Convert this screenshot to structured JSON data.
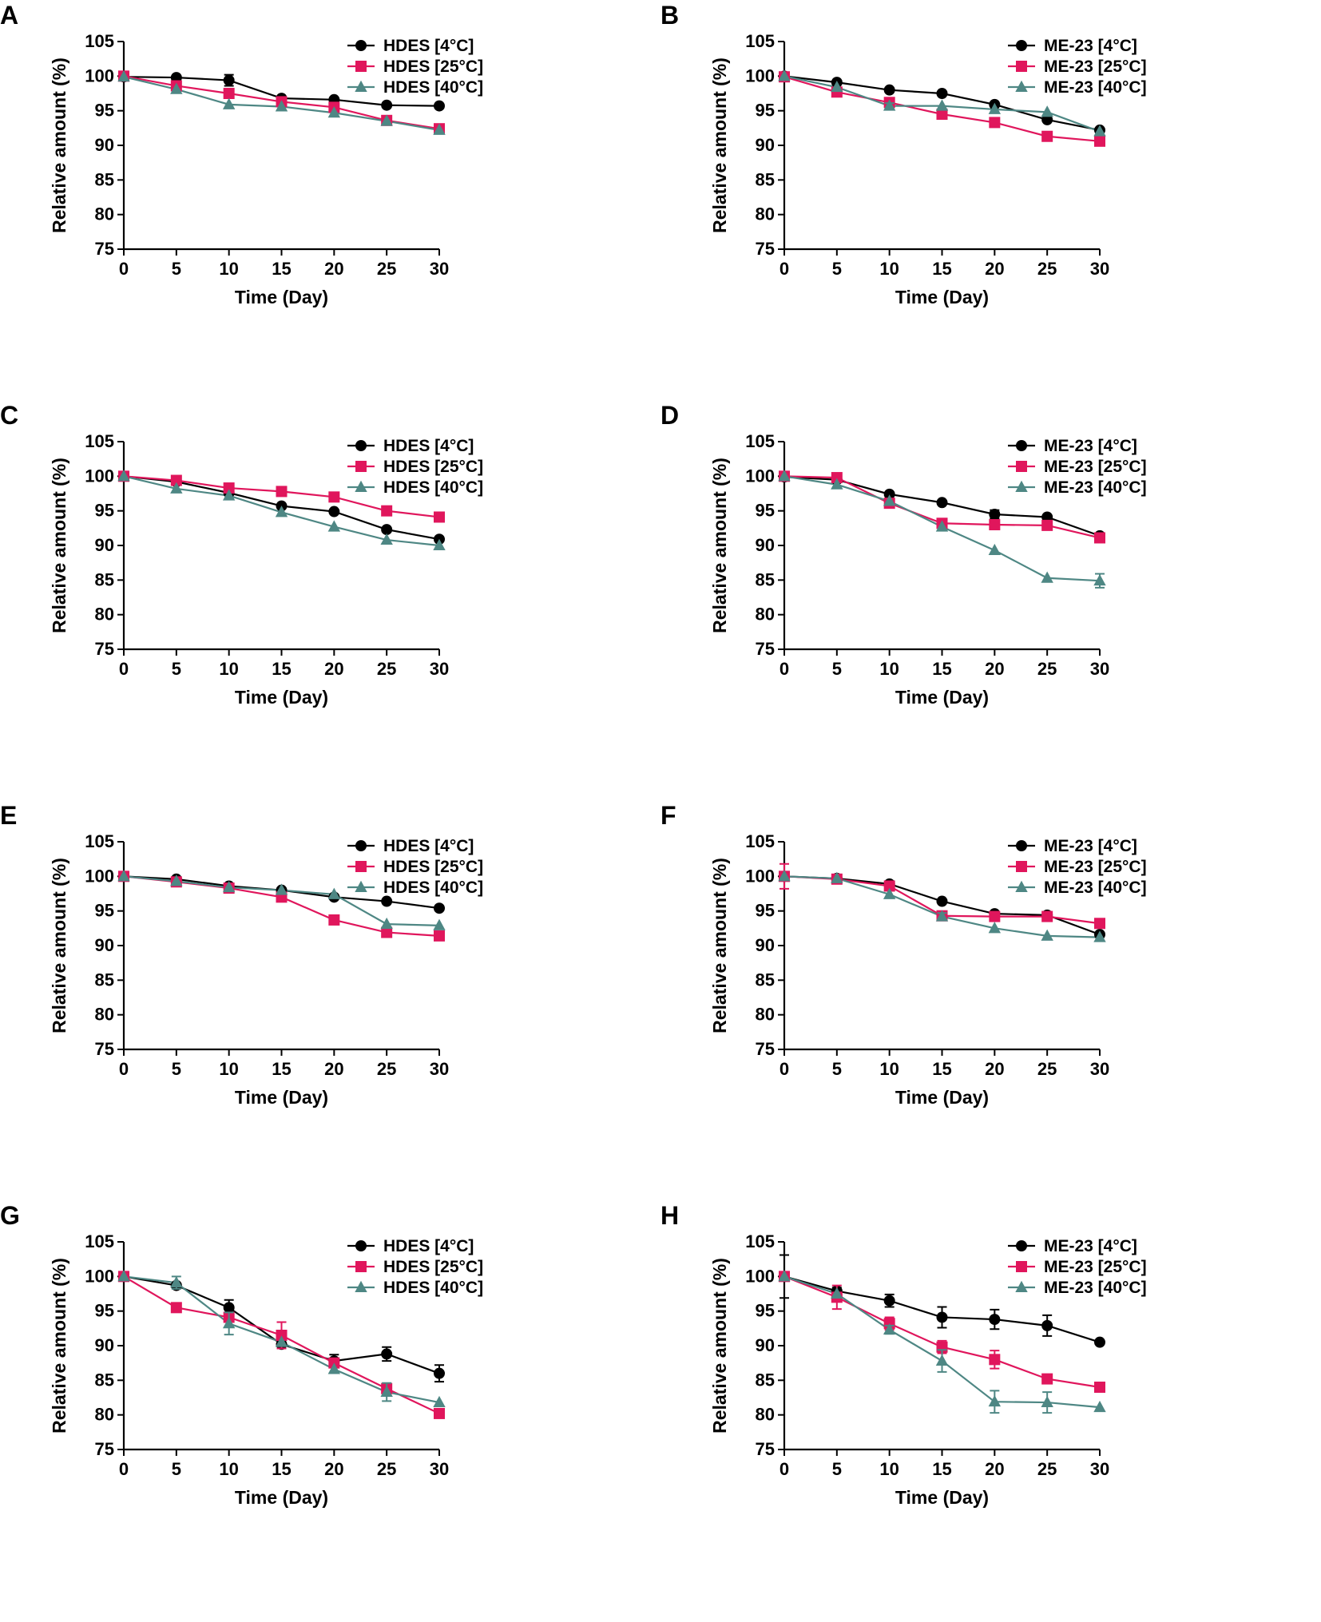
{
  "colors": {
    "s4": "#000000",
    "s25": "#E0165C",
    "s40": "#4E8784"
  },
  "chart_data": [
    {
      "panel": "A",
      "type": "line",
      "xlabel": "Time (Day)",
      "ylabel": "Relative amount (%)",
      "xlim": [
        0,
        30
      ],
      "ylim": [
        75,
        105
      ],
      "xticks": [
        "0",
        "5",
        "10",
        "15",
        "20",
        "25",
        "30"
      ],
      "yticks": [
        "75",
        "80",
        "85",
        "90",
        "95",
        "100",
        "105"
      ],
      "x": [
        0,
        5,
        10,
        15,
        20,
        25,
        30
      ],
      "series": [
        {
          "name": "HDES [4°C]",
          "marker": "circle",
          "color_key": "s4",
          "values": [
            99.9,
            99.8,
            99.4,
            96.8,
            96.6,
            95.8,
            95.7
          ],
          "errors": [
            0.3,
            0.2,
            0.8,
            0.2,
            0.2,
            0.2,
            0.2
          ]
        },
        {
          "name": "HDES [25°C]",
          "marker": "square",
          "color_key": "s25",
          "values": [
            100.0,
            98.6,
            97.5,
            96.3,
            95.5,
            93.6,
            92.4
          ],
          "errors": [
            0,
            0,
            0,
            0,
            0,
            0,
            0
          ]
        },
        {
          "name": "HDES [40°C]",
          "marker": "triangle",
          "color_key": "s40",
          "values": [
            99.9,
            98.1,
            95.9,
            95.6,
            94.7,
            93.5,
            92.2
          ],
          "errors": [
            0,
            0,
            0,
            0,
            0,
            0,
            0
          ]
        }
      ]
    },
    {
      "panel": "B",
      "type": "line",
      "xlabel": "Time (Day)",
      "ylabel": "Relative amount (%)",
      "xlim": [
        0,
        30
      ],
      "ylim": [
        75,
        105
      ],
      "xticks": [
        "0",
        "5",
        "10",
        "15",
        "20",
        "25",
        "30"
      ],
      "yticks": [
        "75",
        "80",
        "85",
        "90",
        "95",
        "100",
        "105"
      ],
      "x": [
        0,
        5,
        10,
        15,
        20,
        25,
        30
      ],
      "series": [
        {
          "name": "ME-23 [4°C]",
          "marker": "circle",
          "color_key": "s4",
          "values": [
            100.0,
            99.1,
            98.0,
            97.5,
            95.9,
            93.7,
            92.2
          ],
          "errors": [
            0,
            0,
            0,
            0,
            0,
            0,
            0
          ]
        },
        {
          "name": "ME-23 [25°C]",
          "marker": "square",
          "color_key": "s25",
          "values": [
            99.9,
            97.7,
            96.2,
            94.5,
            93.3,
            91.3,
            90.6
          ],
          "errors": [
            0,
            0,
            0,
            0,
            0,
            0,
            0
          ]
        },
        {
          "name": "ME-23 [40°C]",
          "marker": "triangle",
          "color_key": "s40",
          "values": [
            100.0,
            98.4,
            95.7,
            95.7,
            95.2,
            94.8,
            92.0
          ],
          "errors": [
            0,
            0,
            0.4,
            0,
            0,
            0,
            0
          ]
        }
      ]
    },
    {
      "panel": "C",
      "type": "line",
      "xlabel": "Time (Day)",
      "ylabel": "Relative amount (%)",
      "xlim": [
        0,
        30
      ],
      "ylim": [
        75,
        105
      ],
      "xticks": [
        "0",
        "5",
        "10",
        "15",
        "20",
        "25",
        "30"
      ],
      "yticks": [
        "75",
        "80",
        "85",
        "90",
        "95",
        "100",
        "105"
      ],
      "x": [
        0,
        5,
        10,
        15,
        20,
        25,
        30
      ],
      "series": [
        {
          "name": "HDES [4°C]",
          "marker": "circle",
          "color_key": "s4",
          "values": [
            100.0,
            99.2,
            97.6,
            95.7,
            94.9,
            92.3,
            90.9
          ],
          "errors": [
            0,
            0,
            0,
            0,
            0,
            0,
            0
          ]
        },
        {
          "name": "HDES [25°C]",
          "marker": "square",
          "color_key": "s25",
          "values": [
            100.0,
            99.4,
            98.3,
            97.8,
            97.0,
            95.0,
            94.1
          ],
          "errors": [
            0,
            0,
            0,
            0,
            0,
            0,
            0
          ]
        },
        {
          "name": "HDES [40°C]",
          "marker": "triangle",
          "color_key": "s40",
          "values": [
            100.0,
            98.2,
            97.2,
            94.8,
            92.7,
            90.8,
            90.0
          ],
          "errors": [
            0,
            0,
            0,
            0,
            0,
            0,
            0
          ]
        }
      ]
    },
    {
      "panel": "D",
      "type": "line",
      "xlabel": "Time (Day)",
      "ylabel": "Relative amount (%)",
      "xlim": [
        0,
        30
      ],
      "ylim": [
        75,
        105
      ],
      "xticks": [
        "0",
        "5",
        "10",
        "15",
        "20",
        "25",
        "30"
      ],
      "yticks": [
        "75",
        "80",
        "85",
        "90",
        "95",
        "100",
        "105"
      ],
      "x": [
        0,
        5,
        10,
        15,
        20,
        25,
        30
      ],
      "series": [
        {
          "name": "ME-23 [4°C]",
          "marker": "circle",
          "color_key": "s4",
          "values": [
            99.9,
            99.5,
            97.4,
            96.2,
            94.5,
            94.1,
            91.4
          ],
          "errors": [
            0.4,
            0,
            0,
            0,
            0.6,
            0,
            0.3
          ]
        },
        {
          "name": "ME-23 [25°C]",
          "marker": "square",
          "color_key": "s25",
          "values": [
            100.0,
            99.8,
            96.1,
            93.2,
            93.0,
            92.9,
            91.1
          ],
          "errors": [
            0,
            0,
            0,
            0,
            0,
            0,
            0
          ]
        },
        {
          "name": "ME-23 [40°C]",
          "marker": "triangle",
          "color_key": "s40",
          "values": [
            100.0,
            98.8,
            96.4,
            92.7,
            89.3,
            85.3,
            84.9
          ],
          "errors": [
            0,
            0,
            0,
            0,
            0,
            0,
            1.0
          ]
        }
      ]
    },
    {
      "panel": "E",
      "type": "line",
      "xlabel": "Time (Day)",
      "ylabel": "Relative amount (%)",
      "xlim": [
        0,
        30
      ],
      "ylim": [
        75,
        105
      ],
      "xticks": [
        "0",
        "5",
        "10",
        "15",
        "20",
        "25",
        "30"
      ],
      "yticks": [
        "75",
        "80",
        "85",
        "90",
        "95",
        "100",
        "105"
      ],
      "x": [
        0,
        5,
        10,
        15,
        20,
        25,
        30
      ],
      "series": [
        {
          "name": "HDES [4°C]",
          "marker": "circle",
          "color_key": "s4",
          "values": [
            100.0,
            99.6,
            98.6,
            98.0,
            97.0,
            96.4,
            95.4
          ],
          "errors": [
            0,
            0,
            0,
            0,
            0,
            0,
            0
          ]
        },
        {
          "name": "HDES [25°C]",
          "marker": "square",
          "color_key": "s25",
          "values": [
            100.0,
            99.2,
            98.3,
            97.0,
            93.7,
            91.9,
            91.4
          ],
          "errors": [
            0,
            0,
            0,
            0,
            0,
            0,
            0
          ]
        },
        {
          "name": "HDES [40°C]",
          "marker": "triangle",
          "color_key": "s40",
          "values": [
            100.0,
            99.3,
            98.4,
            98.0,
            97.4,
            93.1,
            92.9
          ],
          "errors": [
            0,
            0,
            0,
            0,
            0,
            0,
            0
          ]
        }
      ]
    },
    {
      "panel": "F",
      "type": "line",
      "xlabel": "Time (Day)",
      "ylabel": "Relative amount (%)",
      "xlim": [
        0,
        30
      ],
      "ylim": [
        75,
        105
      ],
      "xticks": [
        "0",
        "5",
        "10",
        "15",
        "20",
        "25",
        "30"
      ],
      "yticks": [
        "75",
        "80",
        "85",
        "90",
        "95",
        "100",
        "105"
      ],
      "x": [
        0,
        5,
        10,
        15,
        20,
        25,
        30
      ],
      "series": [
        {
          "name": "ME-23 [4°C]",
          "marker": "circle",
          "color_key": "s4",
          "values": [
            100.0,
            99.7,
            98.9,
            96.4,
            94.6,
            94.4,
            91.6
          ],
          "errors": [
            0,
            0,
            0.4,
            0,
            0,
            0,
            0
          ]
        },
        {
          "name": "ME-23 [25°C]",
          "marker": "square",
          "color_key": "s25",
          "values": [
            100.0,
            99.6,
            98.6,
            94.3,
            94.2,
            94.2,
            93.2
          ],
          "errors": [
            1.8,
            0,
            0,
            0,
            0,
            0,
            0
          ]
        },
        {
          "name": "ME-23 [40°C]",
          "marker": "triangle",
          "color_key": "s40",
          "values": [
            100.0,
            99.7,
            97.4,
            94.2,
            92.5,
            91.4,
            91.2
          ],
          "errors": [
            0,
            0,
            0,
            0.5,
            0,
            0,
            0
          ]
        }
      ]
    },
    {
      "panel": "G",
      "type": "line",
      "xlabel": "Time (Day)",
      "ylabel": "Relative amount (%)",
      "xlim": [
        0,
        30
      ],
      "ylim": [
        75,
        105
      ],
      "xticks": [
        "0",
        "5",
        "10",
        "15",
        "20",
        "25",
        "30"
      ],
      "yticks": [
        "75",
        "80",
        "85",
        "90",
        "95",
        "100",
        "105"
      ],
      "x": [
        0,
        5,
        10,
        15,
        20,
        25,
        30
      ],
      "series": [
        {
          "name": "HDES [4°C]",
          "marker": "circle",
          "color_key": "s4",
          "values": [
            100.0,
            98.7,
            95.5,
            90.2,
            87.8,
            88.8,
            86.0
          ],
          "errors": [
            0,
            0,
            1.1,
            0,
            0.9,
            1.0,
            1.2
          ]
        },
        {
          "name": "HDES [25°C]",
          "marker": "square",
          "color_key": "s25",
          "values": [
            100.0,
            95.5,
            94.1,
            91.5,
            87.5,
            83.8,
            80.2
          ],
          "errors": [
            0,
            0,
            0,
            1.9,
            0,
            0.7,
            0
          ]
        },
        {
          "name": "HDES [40°C]",
          "marker": "triangle",
          "color_key": "s40",
          "values": [
            100.0,
            99.1,
            93.2,
            90.5,
            86.6,
            83.3,
            81.8
          ],
          "errors": [
            0,
            0.9,
            1.6,
            0,
            0,
            1.3,
            0
          ]
        }
      ]
    },
    {
      "panel": "H",
      "type": "line",
      "xlabel": "Time (Day)",
      "ylabel": "Relative amount (%)",
      "xlim": [
        0,
        30
      ],
      "ylim": [
        75,
        105
      ],
      "xticks": [
        "0",
        "5",
        "10",
        "15",
        "20",
        "25",
        "30"
      ],
      "yticks": [
        "75",
        "80",
        "85",
        "90",
        "95",
        "100",
        "105"
      ],
      "x": [
        0,
        5,
        10,
        15,
        20,
        25,
        30
      ],
      "series": [
        {
          "name": "ME-23 [4°C]",
          "marker": "circle",
          "color_key": "s4",
          "values": [
            100.0,
            97.9,
            96.5,
            94.1,
            93.8,
            92.9,
            90.5
          ],
          "errors": [
            3.1,
            0.5,
            0.9,
            1.5,
            1.4,
            1.5,
            0
          ]
        },
        {
          "name": "ME-23 [25°C]",
          "marker": "square",
          "color_key": "s25",
          "values": [
            100.0,
            97.0,
            93.2,
            89.8,
            88.0,
            85.2,
            84.0
          ],
          "errors": [
            0,
            1.7,
            0.9,
            0.9,
            1.3,
            0,
            0
          ]
        },
        {
          "name": "ME-23 [40°C]",
          "marker": "triangle",
          "color_key": "s40",
          "values": [
            100.0,
            97.5,
            92.3,
            87.8,
            81.9,
            81.8,
            81.1
          ],
          "errors": [
            0,
            0,
            0.6,
            1.6,
            1.6,
            1.5,
            0
          ]
        }
      ]
    }
  ]
}
